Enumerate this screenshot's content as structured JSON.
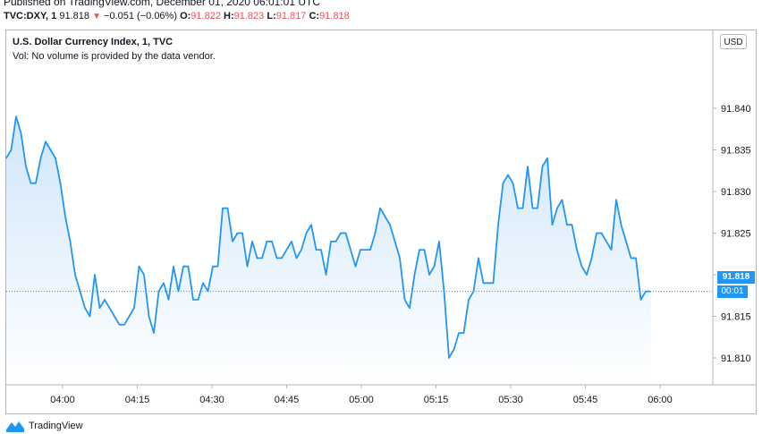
{
  "header": {
    "published": "Published on TradingView.com, December 01, 2020 06:01:01 UTC",
    "symbol": "TVC:DXY, 1",
    "last": "91.818",
    "change": "−0.051 (−0.06%)",
    "open_label": "O:",
    "open": "91.822",
    "high_label": "H:",
    "high": "91.823",
    "low_label": "L:",
    "low": "91.817",
    "close_label": "C:",
    "close": "91.818"
  },
  "chart": {
    "title": "U.S. Dollar Currency Index, 1, TVC",
    "vol_note": "Vol: No volume is provided by the data vendor.",
    "currency": "USD",
    "price_badge": "91.818",
    "time_badge": "00:01"
  },
  "footer": {
    "brand": "TradingView"
  },
  "colors": {
    "line": "#2196f3",
    "fill_top": "#cfe6fb",
    "fill_bottom": "#ffffff",
    "badge": "#2196f3",
    "down": "#ef5350"
  },
  "chart_data": {
    "type": "area",
    "title": "U.S. Dollar Currency Index, 1, TVC",
    "xlabel": "",
    "ylabel": "",
    "ylim": [
      91.8065,
      91.8425
    ],
    "y_ticks": [
      91.81,
      91.815,
      91.82,
      91.825,
      91.83,
      91.835,
      91.84
    ],
    "y_tick_labels": [
      "91.810",
      "91.815",
      "91.820",
      "91.825",
      "91.830",
      "91.835",
      "91.840"
    ],
    "x_ticks": [
      "04:00",
      "04:15",
      "04:30",
      "04:45",
      "05:00",
      "05:15",
      "05:30",
      "05:45",
      "06:00"
    ],
    "grid": false,
    "last_value": 91.818,
    "series": [
      {
        "values": [
          91.834,
          91.835,
          91.839,
          91.837,
          91.833,
          91.831,
          91.831,
          91.834,
          91.836,
          91.835,
          91.834,
          91.831,
          91.827,
          91.824,
          91.82,
          91.818,
          91.816,
          91.815,
          91.82,
          91.816,
          91.817,
          91.816,
          91.815,
          91.814,
          91.814,
          91.815,
          91.816,
          91.821,
          91.82,
          91.815,
          91.813,
          91.818,
          91.819,
          91.817,
          91.821,
          91.818,
          91.821,
          91.821,
          91.817,
          91.817,
          91.819,
          91.818,
          91.821,
          91.821,
          91.828,
          91.828,
          91.824,
          91.825,
          91.825,
          91.821,
          91.824,
          91.822,
          91.822,
          91.824,
          91.824,
          91.822,
          91.822,
          91.823,
          91.824,
          91.822,
          91.823,
          91.825,
          91.826,
          91.823,
          91.823,
          91.82,
          91.824,
          91.824,
          91.825,
          91.825,
          91.823,
          91.821,
          91.823,
          91.823,
          91.823,
          91.825,
          91.828,
          91.827,
          91.826,
          91.824,
          91.822,
          91.817,
          91.816,
          91.82,
          91.823,
          91.823,
          91.82,
          91.821,
          91.824,
          91.818,
          91.81,
          91.811,
          91.813,
          91.813,
          91.817,
          91.818,
          91.822,
          91.819,
          91.819,
          91.819,
          91.826,
          91.831,
          91.832,
          91.831,
          91.828,
          91.828,
          91.833,
          91.828,
          91.828,
          91.833,
          91.834,
          91.826,
          91.828,
          91.829,
          91.826,
          91.826,
          91.823,
          91.821,
          91.82,
          91.822,
          91.825,
          91.825,
          91.824,
          91.823,
          91.829,
          91.826,
          91.824,
          91.822,
          91.822,
          91.817,
          91.818,
          91.818
        ]
      }
    ]
  }
}
